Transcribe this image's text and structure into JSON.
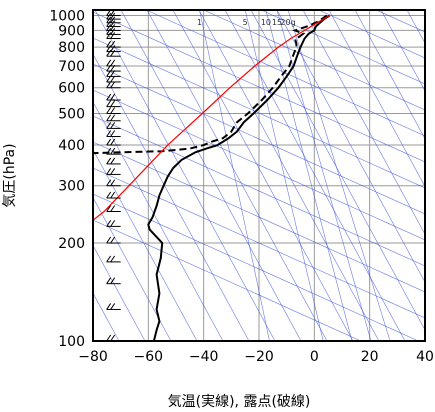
{
  "chart_data": {
    "type": "line",
    "title": "",
    "xlabel": "気温(実線), 露点(破線)",
    "ylabel": "気圧(hPa)",
    "x_unit": "°C",
    "y_unit": "hPa",
    "xlim": [
      -80,
      40
    ],
    "ylim": [
      1040,
      100
    ],
    "y_scale": "log",
    "grid": true,
    "x_ticks": [
      -80,
      -60,
      -40,
      -20,
      0,
      20,
      40
    ],
    "x_tick_labels": [
      "−80",
      "−60",
      "−40",
      "−20",
      "0",
      "20",
      "40"
    ],
    "y_ticks": [
      100,
      200,
      300,
      400,
      500,
      600,
      700,
      800,
      900,
      1000
    ],
    "y_tick_labels": [
      "100",
      "200",
      "300",
      "400",
      "500",
      "600",
      "700",
      "800",
      "900",
      "1000"
    ],
    "mixing_ratio_labels": [
      {
        "text": "1",
        "temp_at_top": -41.5
      },
      {
        "text": "5",
        "temp_at_top": -25
      },
      {
        "text": "10",
        "temp_at_top": -17.5
      },
      {
        "text": "15",
        "temp_at_top": -13.5
      },
      {
        "text": "20g",
        "temp_at_top": -9.5
      }
    ],
    "series": [
      {
        "style": "solid",
        "color": "#000000",
        "points": [
          [
            1000,
            5.5
          ],
          [
            975,
            3.5
          ],
          [
            950,
            2
          ],
          [
            925,
            0.5
          ],
          [
            900,
            0
          ],
          [
            880,
            -2
          ],
          [
            850,
            -3.5
          ],
          [
            800,
            -5
          ],
          [
            760,
            -6
          ],
          [
            700,
            -7.5
          ],
          [
            650,
            -10
          ],
          [
            600,
            -13
          ],
          [
            550,
            -17
          ],
          [
            500,
            -22
          ],
          [
            470,
            -25.5
          ],
          [
            440,
            -28
          ],
          [
            420,
            -31
          ],
          [
            400,
            -35
          ],
          [
            390,
            -39
          ],
          [
            380,
            -43
          ],
          [
            360,
            -48
          ],
          [
            340,
            -51
          ],
          [
            320,
            -53
          ],
          [
            300,
            -54.5
          ],
          [
            280,
            -56
          ],
          [
            260,
            -57
          ],
          [
            240,
            -58.5
          ],
          [
            228,
            -60
          ],
          [
            220,
            -59.5
          ],
          [
            200,
            -55
          ],
          [
            180,
            -55.5
          ],
          [
            160,
            -57
          ],
          [
            140,
            -56
          ],
          [
            125,
            -57
          ],
          [
            115,
            -56
          ],
          [
            108,
            -57
          ],
          [
            100,
            -58
          ]
        ]
      },
      {
        "style": "dashed",
        "color": "#000000",
        "points": [
          [
            1000,
            4.5
          ],
          [
            960,
            1.5
          ],
          [
            930,
            -2
          ],
          [
            900,
            -7
          ],
          [
            880,
            -4
          ],
          [
            860,
            -5.5
          ],
          [
            850,
            -7
          ],
          [
            820,
            -6.5
          ],
          [
            800,
            -6.5
          ],
          [
            760,
            -7.5
          ],
          [
            700,
            -9
          ],
          [
            650,
            -12
          ],
          [
            600,
            -15
          ],
          [
            550,
            -19
          ],
          [
            500,
            -24
          ],
          [
            470,
            -28
          ],
          [
            440,
            -30
          ],
          [
            420,
            -33
          ],
          [
            410,
            -37
          ],
          [
            400,
            -40
          ],
          [
            390,
            -45
          ],
          [
            383,
            -55
          ],
          [
            380,
            -70
          ],
          [
            378,
            -80
          ]
        ]
      },
      {
        "style": "solid",
        "color": "#ff0000",
        "points": [
          [
            1000,
            5.5
          ],
          [
            950,
            1
          ],
          [
            900,
            -3.5
          ],
          [
            850,
            -8.5
          ],
          [
            800,
            -13
          ],
          [
            700,
            -21.5
          ],
          [
            600,
            -30.5
          ],
          [
            500,
            -40.5
          ],
          [
            400,
            -53
          ],
          [
            300,
            -67
          ],
          [
            250,
            -76
          ],
          [
            235,
            -80
          ]
        ]
      }
    ],
    "wind_barbs": [
      {
        "p": 1000,
        "u": 2,
        "v": 10
      },
      {
        "p": 975,
        "u": 2,
        "v": 10
      },
      {
        "p": 950,
        "u": 2,
        "v": 10
      },
      {
        "p": 925,
        "u": 2,
        "v": 10
      },
      {
        "p": 900,
        "u": 2,
        "v": 10
      },
      {
        "p": 875,
        "u": 2,
        "v": 10
      },
      {
        "p": 850,
        "u": 2,
        "v": 10
      },
      {
        "p": 800,
        "u": 2,
        "v": 10
      },
      {
        "p": 775,
        "u": 2,
        "v": 10
      },
      {
        "p": 750,
        "u": 2,
        "v": 10
      },
      {
        "p": 700,
        "u": 2,
        "v": 10
      },
      {
        "p": 675,
        "u": 2,
        "v": 10
      },
      {
        "p": 650,
        "u": 2,
        "v": 10
      },
      {
        "p": 625,
        "u": 2,
        "v": 10
      },
      {
        "p": 600,
        "u": 2,
        "v": 10
      },
      {
        "p": 550,
        "u": 2,
        "v": 10
      },
      {
        "p": 525,
        "u": 2,
        "v": 10
      },
      {
        "p": 500,
        "u": 2,
        "v": 10
      },
      {
        "p": 475,
        "u": 2,
        "v": 10
      },
      {
        "p": 450,
        "u": 2,
        "v": 10
      },
      {
        "p": 425,
        "u": 2,
        "v": 10
      },
      {
        "p": 400,
        "u": 2,
        "v": 10
      },
      {
        "p": 375,
        "u": 2,
        "v": 10
      },
      {
        "p": 350,
        "u": 2,
        "v": 10
      },
      {
        "p": 325,
        "u": 2,
        "v": 10
      },
      {
        "p": 300,
        "u": 2,
        "v": 10
      },
      {
        "p": 275,
        "u": 2,
        "v": 10
      },
      {
        "p": 250,
        "u": 2,
        "v": 10
      },
      {
        "p": 225,
        "u": 2,
        "v": 10
      },
      {
        "p": 200,
        "u": 2,
        "v": 10
      },
      {
        "p": 175,
        "u": 2,
        "v": 10
      },
      {
        "p": 150,
        "u": 2,
        "v": 10
      },
      {
        "p": 125,
        "u": 2,
        "v": 10
      },
      {
        "p": 100,
        "u": 2,
        "v": 10
      }
    ]
  }
}
